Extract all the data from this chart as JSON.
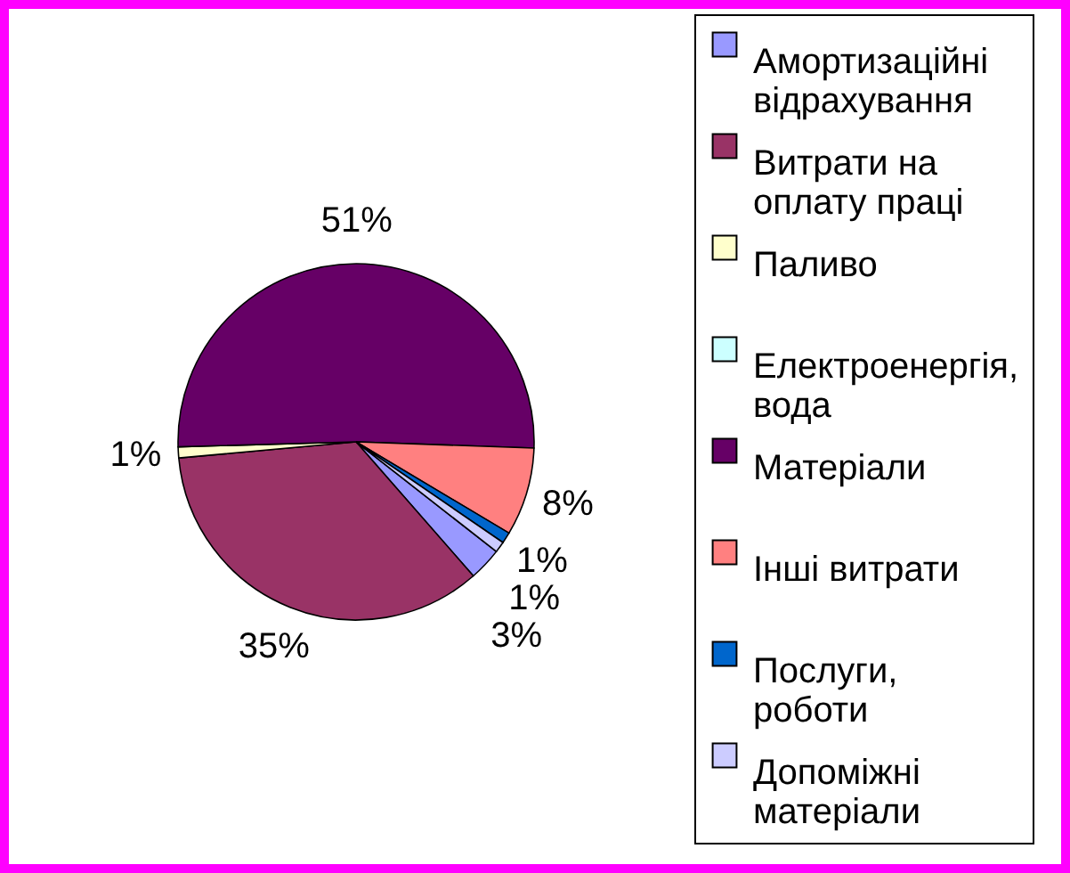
{
  "chart_data": {
    "type": "pie",
    "categories": [
      "Амортизаційні відрахування",
      "Витрати на оплату праці",
      "Паливо",
      "Електроенергія, вода",
      "Матеріали",
      "Інші витрати",
      "Послуги, роботи",
      "Допоміжні матеріали"
    ],
    "values": [
      3,
      35,
      1,
      null,
      51,
      8,
      1,
      1
    ],
    "colors": [
      "#9999ff",
      "#993366",
      "#ffffcc",
      "#ccffff",
      "#660066",
      "#ff8080",
      "#0066cc",
      "#ccccff"
    ],
    "value_labels": [
      "3%",
      "35%",
      "1%",
      null,
      "51%",
      "8%",
      "1%",
      "1%"
    ],
    "legend": "right"
  }
}
